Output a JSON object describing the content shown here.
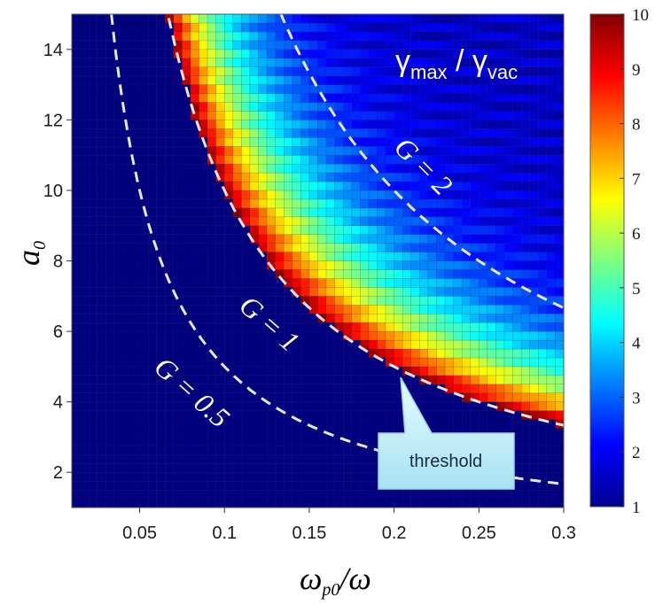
{
  "chart_data": {
    "type": "heatmap",
    "title": "γmax / γvac",
    "title_parts": {
      "main": "γ",
      "sub1": "max",
      "slash": " / ",
      "main2": "γ",
      "sub2": "vac"
    },
    "xlabel": {
      "main": "ω",
      "sub": "p0",
      "rest": "/ω"
    },
    "ylabel": {
      "main": "a",
      "sub": "0"
    },
    "xlim": [
      0.01,
      0.3
    ],
    "ylim": [
      1,
      15
    ],
    "xticks": [
      "0.05",
      "0.1",
      "0.15",
      "0.2",
      "0.25",
      "0.3"
    ],
    "xtick_values": [
      0.05,
      0.1,
      0.15,
      0.2,
      0.25,
      0.3
    ],
    "yticks": [
      "2",
      "4",
      "6",
      "8",
      "10",
      "12",
      "14"
    ],
    "ytick_values": [
      2,
      4,
      6,
      8,
      10,
      12,
      14
    ],
    "colorbar": {
      "range": [
        1,
        10
      ],
      "ticks": [
        "1",
        "2",
        "3",
        "4",
        "5",
        "6",
        "7",
        "8",
        "9",
        "10"
      ],
      "colormap": "jet"
    },
    "grid_size": {
      "nx": 58,
      "ny": 56
    },
    "background_value": 1,
    "threshold_rule": "a0 * (wp0/w) > 1",
    "peak_value": 9.7,
    "far_value": 2.5,
    "contours": [
      {
        "label": "G = 0.5",
        "G": 0.5,
        "style": "dashed",
        "color": "#e8e8e8"
      },
      {
        "label": "G = 1",
        "G": 1,
        "style": "dashed",
        "color": "#e8e8e8"
      },
      {
        "label": "G = 2",
        "G": 2,
        "style": "dashed",
        "color": "#e8e8e8"
      }
    ],
    "annotations": [
      {
        "text": "threshold",
        "type": "callout",
        "points_to_G": 1
      }
    ]
  }
}
